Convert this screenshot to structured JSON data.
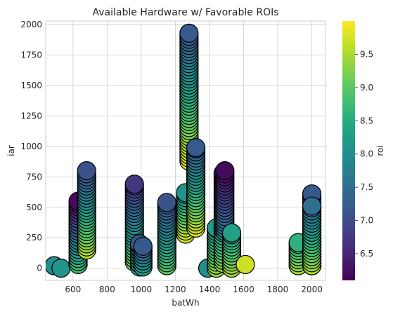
{
  "chart_data": {
    "type": "scatter",
    "title": "Available Hardware w/ Favorable ROIs",
    "xlabel": "batWh",
    "ylabel": "iar",
    "colorbar_label": "roi",
    "xlim": [
      440,
      2080
    ],
    "ylim": [
      -100,
      2030
    ],
    "x_ticks": [
      600,
      800,
      1000,
      1200,
      1400,
      1600,
      1800,
      2000
    ],
    "y_ticks": [
      0,
      250,
      500,
      750,
      1000,
      1250,
      1500,
      1750,
      2000
    ],
    "roi_range": [
      6.1,
      10.0
    ],
    "colorbar_ticks": [
      6.5,
      7.0,
      7.5,
      8.0,
      8.5,
      9.0,
      9.5
    ],
    "colormap": "viridis",
    "grid": true,
    "marker_edge_color": "#000000",
    "columns": [
      {
        "x": 490,
        "y_top": 20,
        "y_bottom": 20,
        "roi_top": 8.0,
        "roi_bottom": 8.0,
        "step": 50
      },
      {
        "x": 530,
        "y_top": 0,
        "y_bottom": 0,
        "roi_top": 8.1,
        "roi_bottom": 8.1,
        "step": 50
      },
      {
        "x": 600,
        "y_top": 30,
        "y_bottom": 30,
        "roi_top": 9.0,
        "roi_bottom": 9.0,
        "step": 50,
        "small": true
      },
      {
        "x": 630,
        "y_top": 550,
        "y_bottom": 30,
        "roi_top": 6.2,
        "roi_bottom": 8.8,
        "step": 25
      },
      {
        "x": 680,
        "y_top": 800,
        "y_bottom": 150,
        "roi_top": 7.1,
        "roi_bottom": 9.6,
        "step": 25
      },
      {
        "x": 960,
        "y_top": 690,
        "y_bottom": 50,
        "roi_top": 6.7,
        "roi_bottom": 9.2,
        "step": 25
      },
      {
        "x": 990,
        "y_top": 200,
        "y_bottom": 10,
        "roi_top": 7.2,
        "roi_bottom": 8.4,
        "step": 25
      },
      {
        "x": 1010,
        "y_top": 180,
        "y_bottom": 10,
        "roi_top": 7.2,
        "roi_bottom": 8.3,
        "step": 25
      },
      {
        "x": 1150,
        "y_top": 540,
        "y_bottom": 20,
        "roi_top": 7.1,
        "roi_bottom": 9.0,
        "step": 25
      },
      {
        "x": 1260,
        "y_top": 620,
        "y_bottom": 280,
        "roi_top": 8.1,
        "roi_bottom": 9.8,
        "step": 25
      },
      {
        "x": 1280,
        "y_top": 1930,
        "y_bottom": 880,
        "roi_top": 7.2,
        "roi_bottom": 9.9,
        "step": 25
      },
      {
        "x": 1320,
        "y_top": 990,
        "y_bottom": 330,
        "roi_top": 7.2,
        "roi_bottom": 9.8,
        "step": 25
      },
      {
        "x": 1390,
        "y_top": 0,
        "y_bottom": 0,
        "roi_top": 8.0,
        "roi_bottom": 8.0,
        "step": 50
      },
      {
        "x": 1440,
        "y_top": 330,
        "y_bottom": 0,
        "roi_top": 8.2,
        "roi_bottom": 9.4,
        "step": 25
      },
      {
        "x": 1480,
        "y_top": 780,
        "y_bottom": 40,
        "roi_top": 6.6,
        "roi_bottom": 9.3,
        "step": 25
      },
      {
        "x": 1490,
        "y_top": 800,
        "y_bottom": 300,
        "roi_top": 6.2,
        "roi_bottom": 7.8,
        "step": 25
      },
      {
        "x": 1530,
        "y_top": 290,
        "y_bottom": 0,
        "roi_top": 8.3,
        "roi_bottom": 9.5,
        "step": 25
      },
      {
        "x": 1610,
        "y_top": 30,
        "y_bottom": 30,
        "roi_top": 9.7,
        "roi_bottom": 9.7,
        "step": 50
      },
      {
        "x": 1920,
        "y_top": 210,
        "y_bottom": 20,
        "roi_top": 8.6,
        "roi_bottom": 9.5,
        "step": 25
      },
      {
        "x": 2000,
        "y_top": 610,
        "y_bottom": 20,
        "roi_top": 7.2,
        "roi_bottom": 9.5,
        "step": 25
      },
      {
        "x": 2000,
        "y_top": 510,
        "y_bottom": 20,
        "roi_top": 7.5,
        "roi_bottom": 9.5,
        "step": 25
      }
    ]
  }
}
